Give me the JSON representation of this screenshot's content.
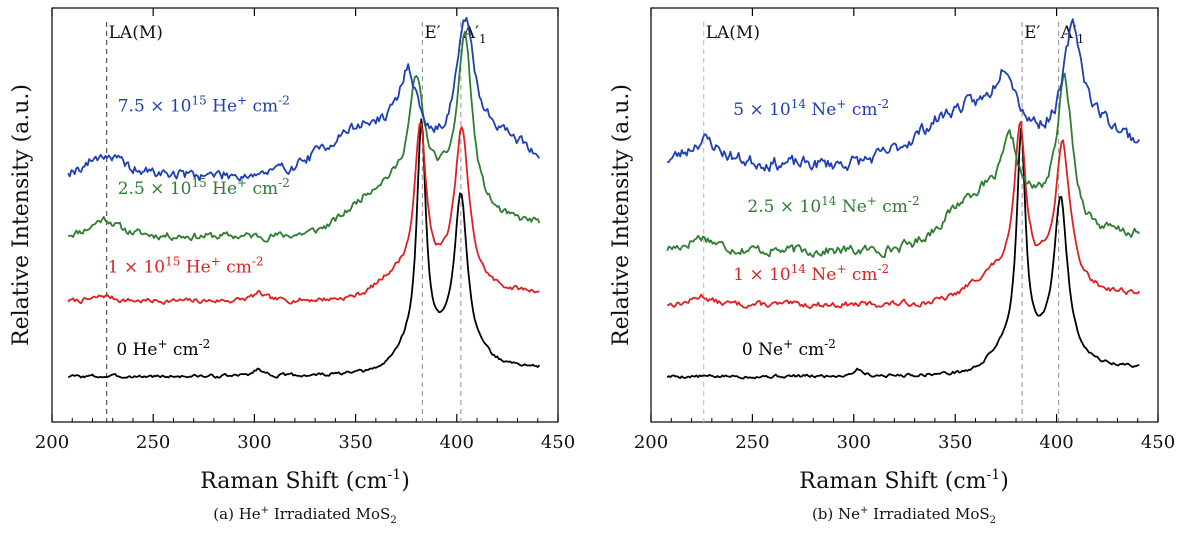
{
  "figure": {
    "panels": [
      {
        "caption_prefix": "(a) He",
        "caption_sup": "+",
        "caption_mid": " Irradiated MoS",
        "caption_sub": "2"
      },
      {
        "caption_prefix": "(b) Ne",
        "caption_sup": "+",
        "caption_mid": " Irradiated MoS",
        "caption_sub": "2"
      }
    ]
  },
  "chart_data": [
    {
      "type": "line",
      "xlabel": "Raman Shift (cm-1)",
      "xlabel_main": "Raman Shift (cm",
      "xlabel_sup": "-1",
      "xlabel_tail": ")",
      "ylabel": "Relative Intensity (a.u.)",
      "xlim": [
        200,
        450
      ],
      "xticks": [
        200,
        250,
        300,
        350,
        400,
        450
      ],
      "ylim": [
        0,
        1
      ],
      "y_ticks_labeled": false,
      "grid": false,
      "reference_lines": [
        {
          "x": 227,
          "label": "LA(M)",
          "style": "dashed",
          "color": "#444444"
        },
        {
          "x": 383,
          "label": "E′",
          "style": "dashed",
          "color": "#999999"
        },
        {
          "x": 402,
          "label": "A′1",
          "style": "dashed",
          "color": "#999999"
        }
      ],
      "series": [
        {
          "name": "0 He+ cm-2",
          "label_main": "0 He",
          "label_sup1": "+",
          "label_mid": " cm",
          "label_sup2": "-2",
          "color": "#000000",
          "label_color": "#000000",
          "label_x": 255,
          "label_y": 0.12,
          "baseline": 0.06,
          "peaks": [
            [
              382.5,
              0.62,
              2.6
            ],
            [
              402,
              0.43,
              3.8
            ],
            [
              302,
              0.02,
              3
            ]
          ],
          "bumps": [
            [
              378,
              0.06,
              8
            ],
            [
              398,
              0.06,
              10
            ]
          ],
          "slope": 0.04,
          "noise": 0.004,
          "seed": 3
        },
        {
          "name": "1 × 1015 He+ cm-2",
          "label_main": "1 × 10",
          "label_sup1": "15",
          "label_mid": " He",
          "label_sup2": "+",
          "label_mid2": " cm",
          "label_sup3": "-2",
          "color": "#e02020",
          "label_color": "#e02020",
          "label_x": 266,
          "label_y": 0.35,
          "baseline": 0.27,
          "peaks": [
            [
              382,
              0.43,
              3.2
            ],
            [
              402.5,
              0.41,
              4.0
            ],
            [
              226,
              0.015,
              5
            ],
            [
              302,
              0.02,
              4
            ]
          ],
          "bumps": [
            [
              372,
              0.06,
              10
            ],
            [
              398,
              0.05,
              10
            ]
          ],
          "slope": 0.04,
          "noise": 0.006,
          "seed": 7
        },
        {
          "name": "2.5 × 1015 He+ cm-2",
          "label_main": "2.5 × 10",
          "label_sup1": "15",
          "label_mid": " He",
          "label_sup2": "+",
          "label_mid2": " cm",
          "label_sup3": "-2",
          "color": "#2e7d32",
          "label_color": "#2e7d32",
          "label_x": 275,
          "label_y": 0.57,
          "baseline": 0.45,
          "peaks": [
            [
              380,
              0.3,
              4.5
            ],
            [
              404,
              0.46,
              4.2
            ],
            [
              226,
              0.05,
              8
            ]
          ],
          "bumps": [
            [
              365,
              0.12,
              16
            ],
            [
              395,
              0.08,
              12
            ]
          ],
          "slope": 0.06,
          "noise": 0.009,
          "seed": 11
        },
        {
          "name": "7.5 × 1015 He+ cm-2",
          "label_main": "7.5 × 10",
          "label_sup1": "15",
          "label_mid": " He",
          "label_sup2": "+",
          "label_mid2": " cm",
          "label_sup3": "-2",
          "color": "#1f3fb4",
          "label_color": "#1f3fb4",
          "label_x": 275,
          "label_y": 0.8,
          "baseline": 0.62,
          "peaks": [
            [
              376,
              0.2,
              5.5
            ],
            [
              404,
              0.36,
              5.5
            ],
            [
              226,
              0.06,
              10
            ]
          ],
          "bumps": [
            [
              355,
              0.12,
              20
            ],
            [
              420,
              0.06,
              12
            ]
          ],
          "slope": 0.07,
          "noise": 0.013,
          "seed": 19
        }
      ]
    },
    {
      "type": "line",
      "xlabel": "Raman Shift (cm-1)",
      "xlabel_main": "Raman Shift (cm",
      "xlabel_sup": "-1",
      "xlabel_tail": ")",
      "ylabel": "Relative Intensity (a.u.)",
      "xlim": [
        200,
        450
      ],
      "xticks": [
        200,
        250,
        300,
        350,
        400,
        450
      ],
      "ylim": [
        0,
        1
      ],
      "y_ticks_labeled": false,
      "grid": false,
      "reference_lines": [
        {
          "x": 226,
          "label": "LA(M)",
          "style": "dashed",
          "color": "#bbbbbb"
        },
        {
          "x": 383,
          "label": "E′",
          "style": "dashed",
          "color": "#999999"
        },
        {
          "x": 401,
          "label": "A′1",
          "style": "dashed",
          "color": "#999999"
        }
      ],
      "series": [
        {
          "name": "0 Ne+ cm-2",
          "label_main": "0 Ne",
          "label_sup1": "+",
          "label_mid": " cm",
          "label_sup2": "-2",
          "color": "#000000",
          "label_color": "#000000",
          "label_x": 268,
          "label_y": 0.12,
          "baseline": 0.06,
          "peaks": [
            [
              382.5,
              0.6,
              2.6
            ],
            [
              402,
              0.42,
              3.8
            ],
            [
              302,
              0.02,
              3
            ]
          ],
          "bumps": [
            [
              376,
              0.06,
              8
            ],
            [
              398,
              0.06,
              10
            ]
          ],
          "slope": 0.04,
          "noise": 0.004,
          "seed": 5
        },
        {
          "name": "1 × 1014 Ne+ cm-2",
          "label_main": "1 × 10",
          "label_sup1": "14",
          "label_mid": " Ne",
          "label_sup2": "+",
          "label_mid2": " cm",
          "label_sup3": "-2",
          "color": "#e02020",
          "label_color": "#e02020",
          "label_x": 279,
          "label_y": 0.33,
          "baseline": 0.26,
          "peaks": [
            [
              382,
              0.42,
              3.2
            ],
            [
              403,
              0.38,
              4.2
            ],
            [
              225,
              0.025,
              5
            ]
          ],
          "bumps": [
            [
              370,
              0.07,
              12
            ],
            [
              396,
              0.05,
              10
            ]
          ],
          "slope": 0.05,
          "noise": 0.007,
          "seed": 13
        },
        {
          "name": "2.5 × 1014 Ne+ cm-2",
          "label_main": "2.5 × 10",
          "label_sup1": "14",
          "label_mid": " Ne",
          "label_sup2": "+",
          "label_mid2": " cm",
          "label_sup3": "-2",
          "color": "#2e7d32",
          "label_color": "#2e7d32",
          "label_x": 290,
          "label_y": 0.52,
          "baseline": 0.41,
          "peaks": [
            [
              377,
              0.18,
              5
            ],
            [
              404,
              0.4,
              4.6
            ],
            [
              225,
              0.04,
              8
            ]
          ],
          "bumps": [
            [
              362,
              0.14,
              16
            ],
            [
              393,
              0.06,
              10
            ]
          ],
          "slope": 0.07,
          "noise": 0.012,
          "seed": 17
        },
        {
          "name": "5 × 1014 Ne+ cm-2",
          "label_main": "5 × 10",
          "label_sup1": "14",
          "label_mid": " Ne",
          "label_sup2": "+",
          "label_mid2": " cm",
          "label_sup3": "-2",
          "color": "#1f3fb4",
          "label_color": "#1f3fb4",
          "label_x": 279,
          "label_y": 0.79,
          "baseline": 0.65,
          "peaks": [
            [
              375,
              0.16,
              6
            ],
            [
              408,
              0.3,
              5.5
            ],
            [
              226,
              0.07,
              10
            ]
          ],
          "bumps": [
            [
              355,
              0.14,
              22
            ],
            [
              420,
              0.05,
              12
            ]
          ],
          "slope": 0.08,
          "noise": 0.016,
          "seed": 23
        }
      ]
    }
  ]
}
